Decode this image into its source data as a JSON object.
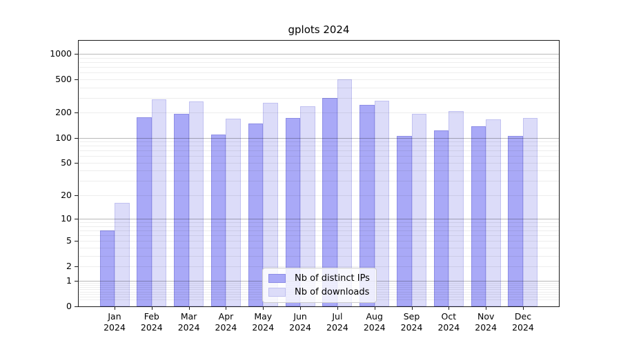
{
  "title": "gplots 2024",
  "legend": {
    "items": [
      {
        "label": "Nb of distinct IPs",
        "color": "#a9a9f7"
      },
      {
        "label": "Nb of downloads",
        "color": "#dcdcf9"
      }
    ]
  },
  "chart_data": {
    "type": "bar",
    "title": "gplots 2024",
    "categories": [
      "Jan 2024",
      "Feb 2024",
      "Mar 2024",
      "Apr 2024",
      "May 2024",
      "Jun 2024",
      "Jul 2024",
      "Aug 2024",
      "Sep 2024",
      "Oct 2024",
      "Nov 2024",
      "Dec 2024"
    ],
    "series": [
      {
        "name": "Nb of distinct IPs",
        "color": "#a9a9f7",
        "edge": "rgba(100,100,205,0.40)",
        "values": [
          7,
          175,
          195,
          110,
          148,
          172,
          302,
          248,
          106,
          122,
          138,
          106
        ]
      },
      {
        "name": "Nb of downloads",
        "color": "#dcdcf9",
        "edge": "rgba(160,160,230,0.45)",
        "values": [
          16,
          290,
          270,
          169,
          260,
          240,
          497,
          278,
          194,
          210,
          167,
          172
        ]
      }
    ],
    "xlabel": "",
    "ylabel": "",
    "y_scale": "log1p",
    "y_ticks": [
      0,
      1,
      2,
      5,
      10,
      20,
      50,
      100,
      200,
      500,
      1000
    ],
    "ylim": [
      0,
      1437
    ],
    "grid": true,
    "grid_major_at": [
      1,
      10,
      100,
      1000
    ],
    "legend_position": "lower center",
    "colors": {
      "major_grid": "#b8b8b8",
      "minor_grid": "#e8e8e8",
      "axis": "#1a1a1a"
    }
  }
}
